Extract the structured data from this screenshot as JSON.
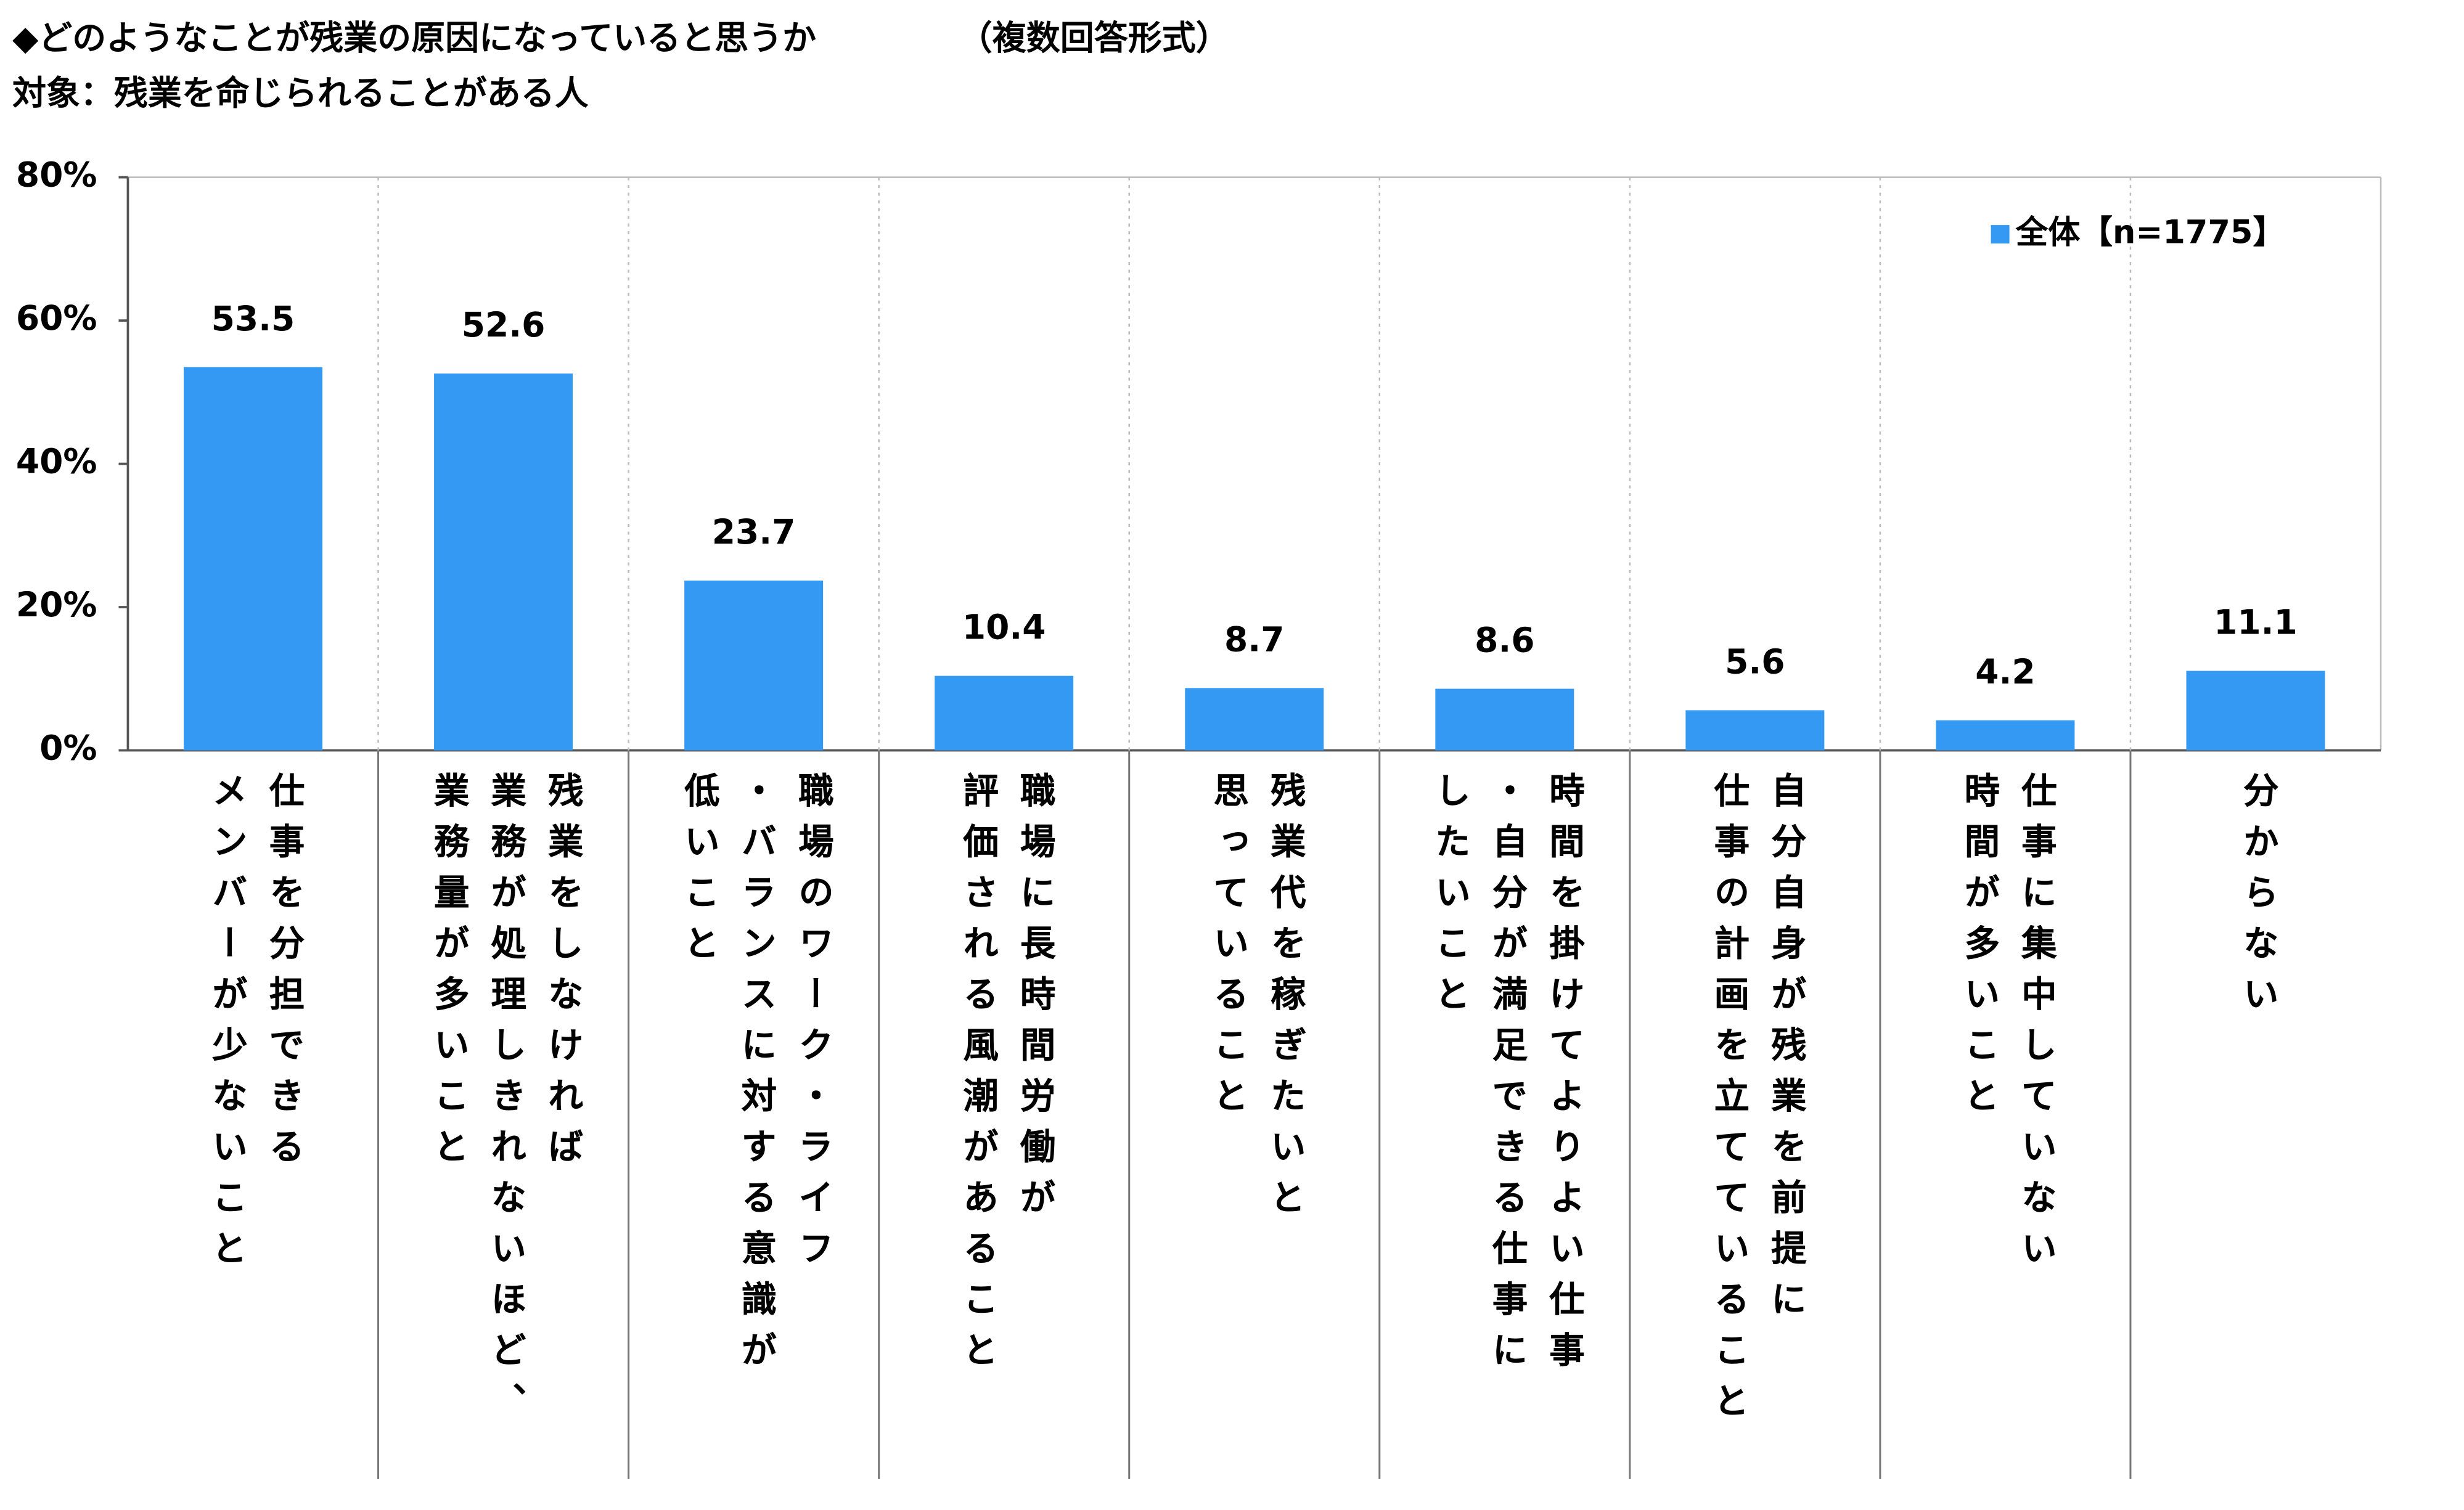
{
  "chart_data": {
    "type": "bar",
    "title": "◆どのようなことが残業の原因になっていると思うか",
    "subtitle": "（複数回答形式）",
    "target": "対象：残業を命じられることがある人",
    "categories": [
      "仕事を分担できる\nメンバーが少ないこと",
      "残業をしなければ\n業務が処理しきれないほど、\n業務量が多いこと",
      "職場のワーク・ライフ\n・バランスに対する意識が\n低いこと",
      "職場に長時間労働が\n評価される風潮があること",
      "残業代を稼ぎたいと\n思っていること",
      "時間を掛けてよりよい仕事\n・自分が満足できる仕事に\nしたいこと",
      "自分自身が残業を前提に\n仕事の計画を立てていること",
      "仕事に集中していない\n時間が多いこと",
      "分からない"
    ],
    "series": [
      {
        "name": "全体【n=1775】",
        "color": "#3399f3",
        "values": [
          53.5,
          52.6,
          23.7,
          10.4,
          8.7,
          8.6,
          5.6,
          4.2,
          11.1
        ]
      }
    ],
    "ylim": [
      0,
      80
    ],
    "yticks": [
      {
        "value": 0,
        "label": "0%"
      },
      {
        "value": 20,
        "label": "20%"
      },
      {
        "value": 40,
        "label": "40%"
      },
      {
        "value": 60,
        "label": "60%"
      },
      {
        "value": 80,
        "label": "80%"
      }
    ],
    "legend": "top-right"
  }
}
